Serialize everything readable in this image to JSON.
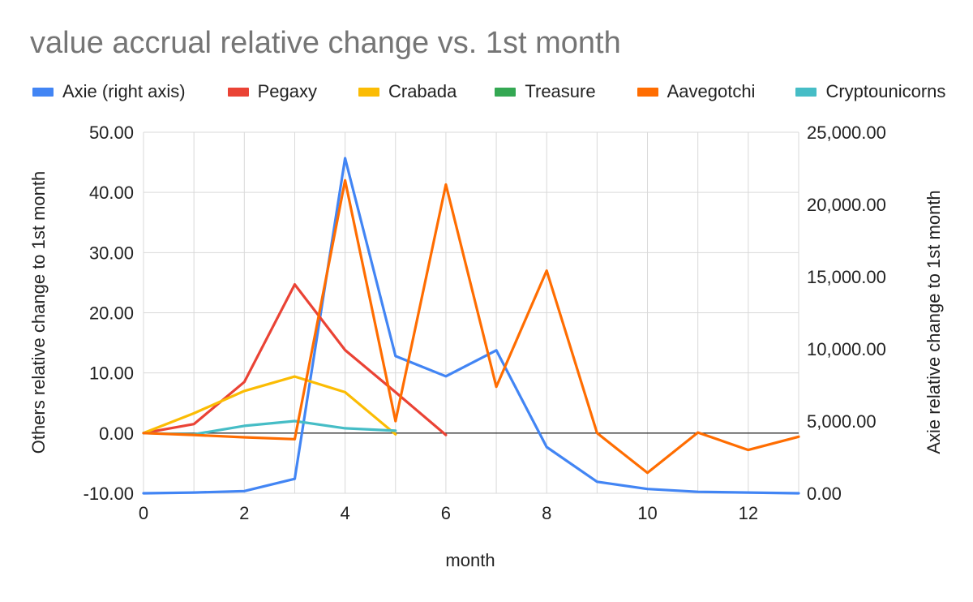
{
  "chart_data": {
    "type": "line",
    "title": "value accrual relative change vs. 1st month",
    "xlabel": "month",
    "ylabel_left": "Others relative change to 1st month",
    "ylabel_right": "Axie relative change to 1st month",
    "xlim": [
      0,
      13
    ],
    "ylim_left": [
      -10,
      50
    ],
    "ylim_right": [
      0,
      25000
    ],
    "x_ticks": [
      "0",
      "2",
      "4",
      "6",
      "8",
      "10",
      "12"
    ],
    "y_left_ticks": [
      "50.00",
      "40.00",
      "30.00",
      "20.00",
      "10.00",
      "0.00",
      "-10.00"
    ],
    "y_right_ticks": [
      "25,000.00",
      "20,000.00",
      "15,000.00",
      "10,000.00",
      "5,000.00",
      "0.00"
    ],
    "grid": true,
    "legend_position": "top",
    "series": [
      {
        "name": "Axie (right axis)",
        "color": "#4285f4",
        "axis": "right",
        "x": [
          0,
          1,
          2,
          3,
          4,
          5,
          6,
          7,
          8,
          9,
          10,
          11,
          12,
          13
        ],
        "y": [
          0,
          50,
          150,
          1000,
          23200,
          9500,
          8100,
          9900,
          3200,
          800,
          300,
          100,
          50,
          0
        ]
      },
      {
        "name": "Pegaxy",
        "color": "#ea4335",
        "axis": "left",
        "x": [
          0,
          1,
          2,
          3,
          4,
          5,
          6
        ],
        "y": [
          0,
          1.5,
          8.5,
          24.7,
          13.8,
          6.8,
          -0.3
        ]
      },
      {
        "name": "Crabada",
        "color": "#fbbc04",
        "axis": "left",
        "x": [
          0,
          1,
          2,
          3,
          4,
          5
        ],
        "y": [
          0,
          3.3,
          7.0,
          9.4,
          6.8,
          -0.2
        ]
      },
      {
        "name": "Treasure",
        "color": "#34a853",
        "axis": "left",
        "x": [],
        "y": []
      },
      {
        "name": "Aavegotchi",
        "color": "#ff6d01",
        "axis": "left",
        "x": [
          0,
          1,
          2,
          3,
          4,
          5,
          6,
          7,
          8,
          9,
          10,
          11,
          12,
          13
        ],
        "y": [
          0,
          -0.3,
          -0.7,
          -1.0,
          42.0,
          2.0,
          41.3,
          7.7,
          27.0,
          0,
          -6.6,
          0.1,
          -2.8,
          -0.6
        ]
      },
      {
        "name": "Cryptounicorns",
        "color": "#46bdc6",
        "axis": "left",
        "x": [
          0,
          1,
          2,
          3,
          4,
          5
        ],
        "y": [
          0,
          -0.2,
          1.2,
          2.0,
          0.8,
          0.4
        ]
      }
    ]
  }
}
